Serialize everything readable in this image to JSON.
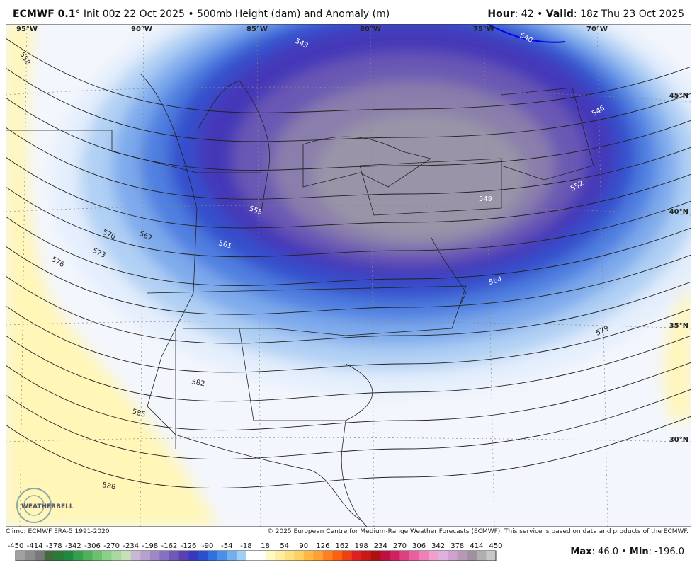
{
  "header": {
    "model": "ECMWF 0.1",
    "description": "° Init 00z 22 Oct 2025 • 500mb Height (dam) and Anomaly (m)",
    "hour_label": "Hour",
    "hour_text": ": 42 • ",
    "valid_label": "Valid",
    "valid_text": ": 18z Thu 23 Oct 2025"
  },
  "map": {
    "longitudes": [
      "95°W",
      "90°W",
      "85°W",
      "80°W",
      "75°W",
      "70°W"
    ],
    "latitudes": [
      "45°N",
      "40°N",
      "35°N",
      "30°N"
    ],
    "contour_labels": [
      "558",
      "543",
      "540",
      "546",
      "552",
      "549",
      "555",
      "561",
      "567",
      "570",
      "573",
      "576",
      "564",
      "579",
      "582",
      "585",
      "588"
    ],
    "logo": "WEATHERBELL"
  },
  "footer": {
    "climo": "Climo: ECMWF ERA-5 1991-2020",
    "copyright": "© 2025 European Centre for Medium-Range Weather Forecasts (ECMWF). This service is based on data and products of the ECMWF."
  },
  "colorbar": {
    "ticks": [
      -450,
      -414,
      -378,
      -342,
      -306,
      -270,
      -234,
      -198,
      -162,
      -126,
      -90,
      -54,
      -18,
      18,
      54,
      90,
      126,
      162,
      198,
      234,
      270,
      306,
      342,
      378,
      414,
      450
    ],
    "colors": [
      "#a0a0a0",
      "#8c8c8c",
      "#787878",
      "#3f6b3f",
      "#2a7a3a",
      "#1f8a3f",
      "#34a04f",
      "#4fb05a",
      "#6cc070",
      "#8ad08a",
      "#a8d8a0",
      "#c8e0b8",
      "#c8b8d8",
      "#b8a0d0",
      "#a088c8",
      "#8870c0",
      "#7058b8",
      "#5a40b0",
      "#3838c0",
      "#2850d0",
      "#3070e0",
      "#4890e8",
      "#70b0f0",
      "#a0d0f8",
      "#ffffff",
      "#ffffff",
      "#fff8c0",
      "#ffeea0",
      "#ffe080",
      "#ffd060",
      "#ffb840",
      "#ffa030",
      "#ff8020",
      "#ff6010",
      "#f04010",
      "#e02020",
      "#c81818",
      "#b01010",
      "#c01040",
      "#d02060",
      "#e04080",
      "#e860a0",
      "#f080b8",
      "#f0a0d0",
      "#e0b0e0",
      "#d0a0d0",
      "#b898b8",
      "#a090a0",
      "#b0b0b0",
      "#c8c8c8"
    ]
  },
  "stats": {
    "max_label": "Max",
    "max_text": ": 46.0 • ",
    "min_label": "Min",
    "min_text": ": -196.0"
  }
}
